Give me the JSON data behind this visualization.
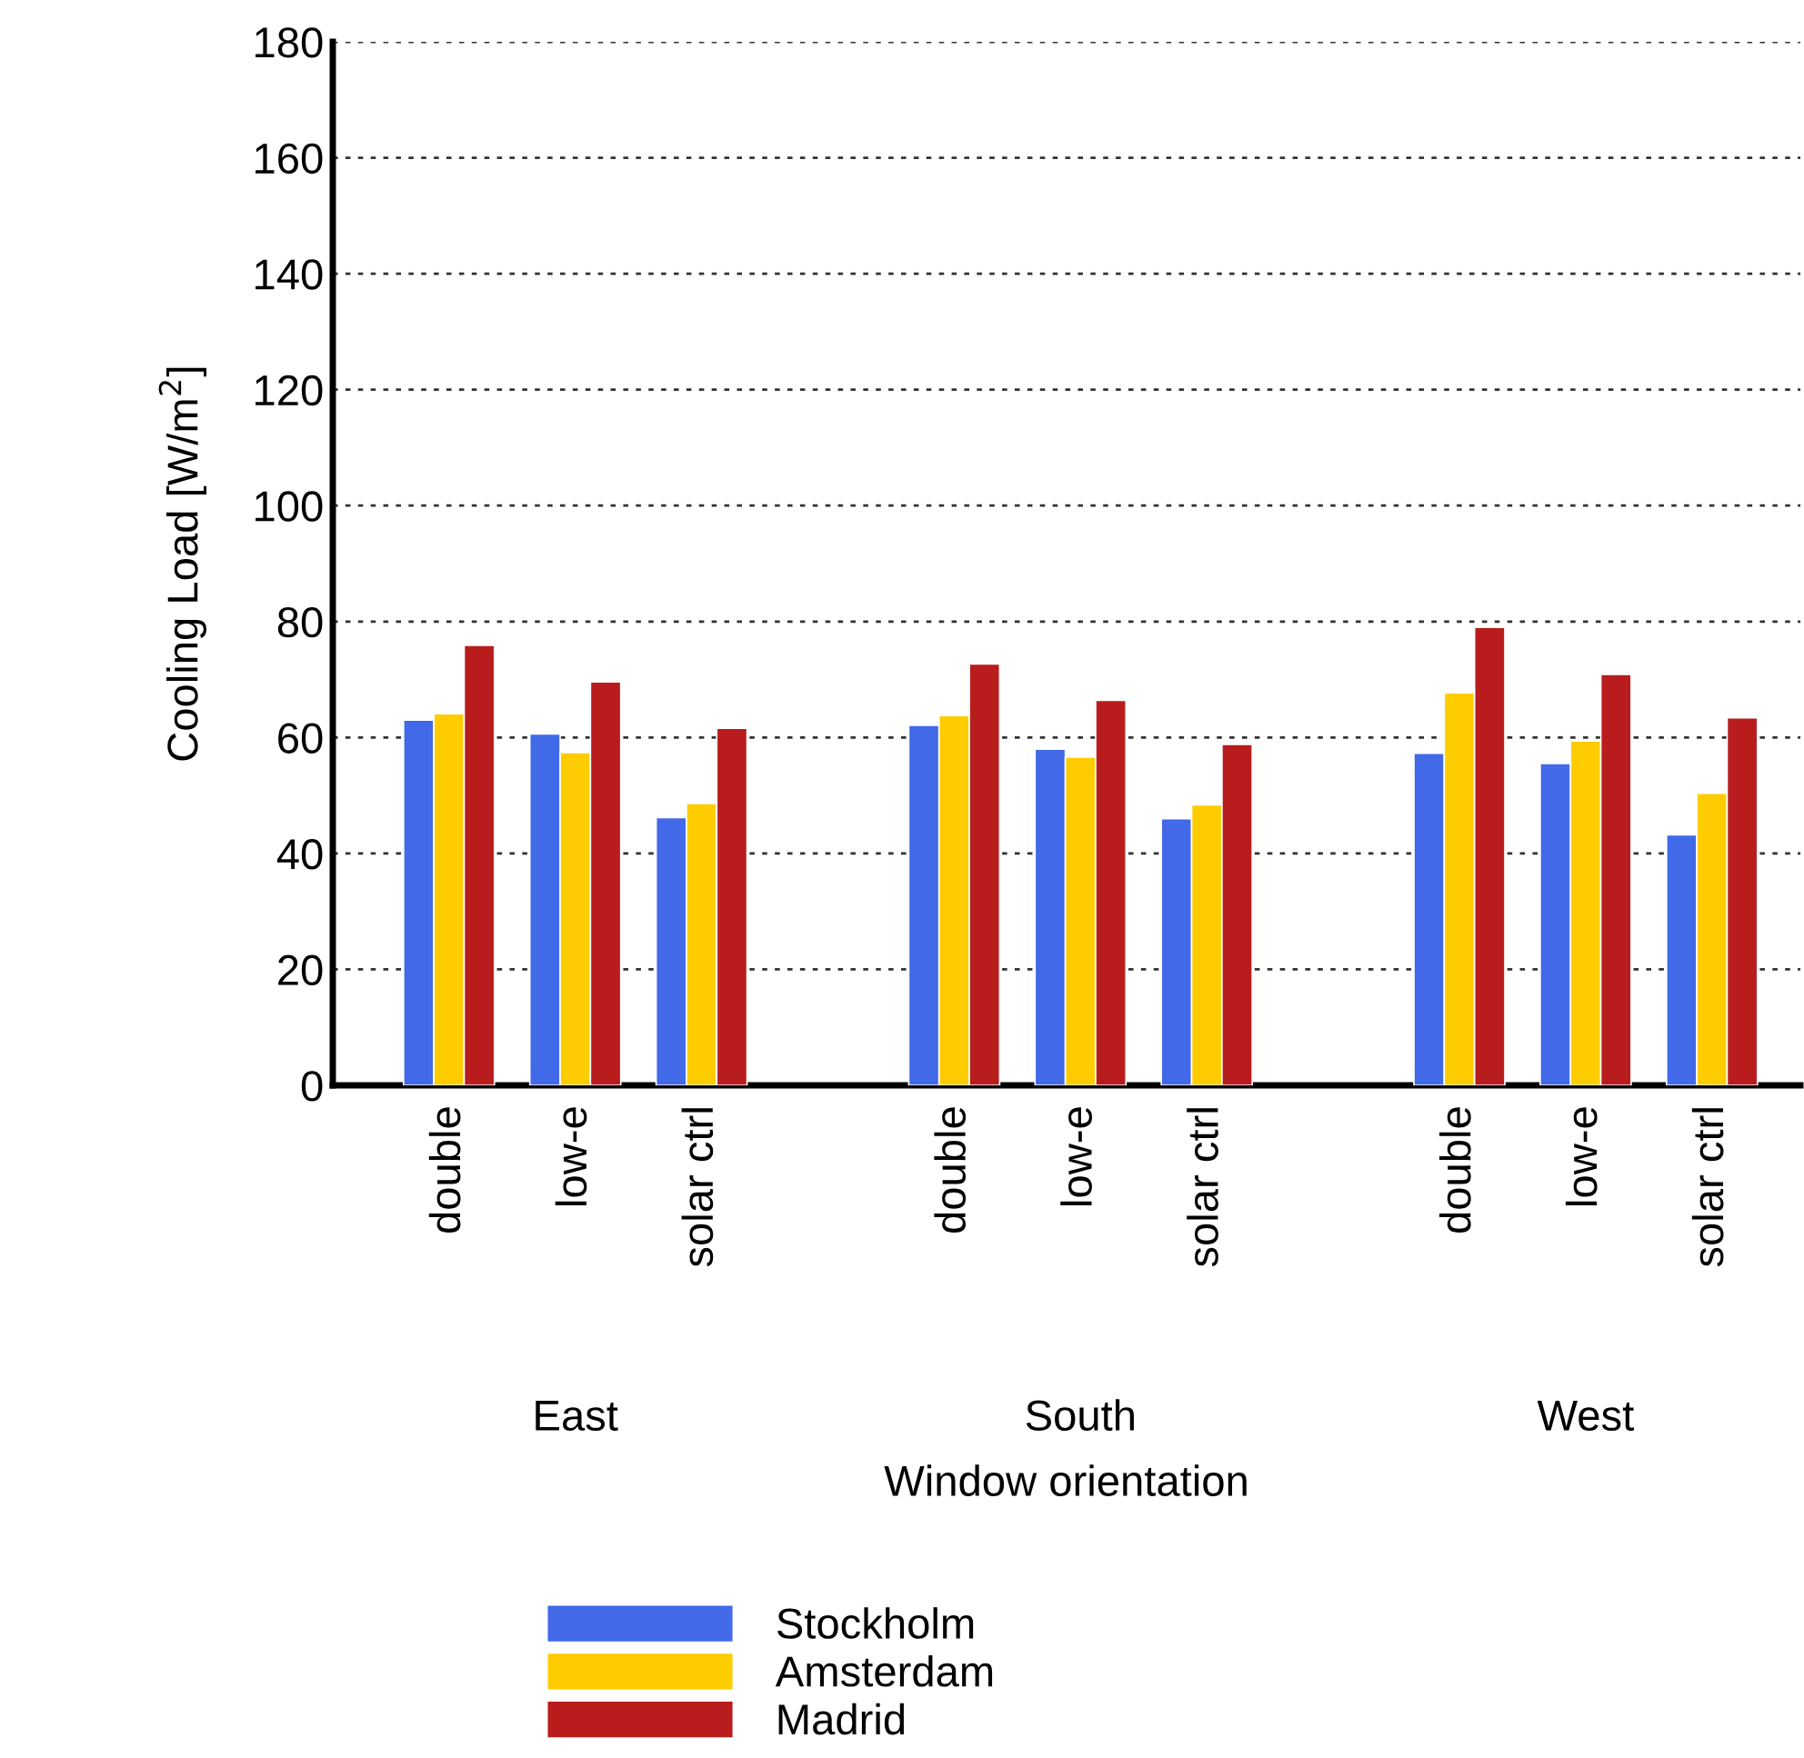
{
  "chart_data": {
    "type": "bar",
    "ylabel": "Cooling Load [W/m$^{2}$]",
    "xlabel": "Window orientation",
    "categories": [
      "double",
      "low-e",
      "solar ctrl",
      null,
      "double",
      "low-e",
      "solar ctrl",
      null,
      "double",
      "low-e",
      "solar ctrl"
    ],
    "annotations": [
      "East",
      "South",
      "West"
    ],
    "series": [
      {
        "name": "Stockholm",
        "color": "#4169e8",
        "values": [
          63.0,
          60.6,
          46.2,
          null,
          62.1,
          58.0,
          46.0,
          null,
          57.3,
          55.5,
          43.2
        ]
      },
      {
        "name": "Amsterdam",
        "color": "#ffcc00",
        "values": [
          64.1,
          57.4,
          48.6,
          null,
          63.8,
          56.6,
          48.4,
          null,
          67.7,
          59.4,
          50.4
        ]
      },
      {
        "name": "Madrid",
        "color": "#b81c1c",
        "values": [
          75.9,
          69.6,
          61.6,
          null,
          72.7,
          66.4,
          58.8,
          null,
          79.0,
          70.9,
          63.4
        ]
      }
    ],
    "ylim": [
      0,
      180
    ],
    "yticks": [
      0,
      20,
      40,
      60,
      80,
      100,
      120,
      140,
      160,
      180
    ],
    "grid": "y",
    "legend": "bottom"
  }
}
